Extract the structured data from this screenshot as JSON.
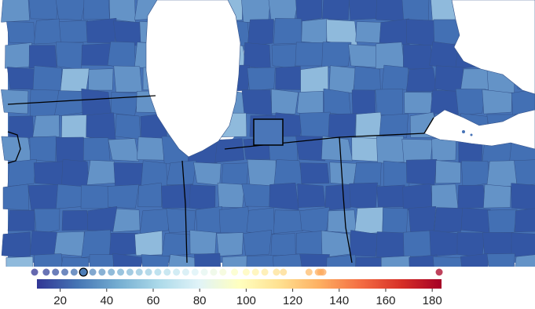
{
  "map": {
    "colors": {
      "water": "#ffffff",
      "county_dark": "#3356a4",
      "county_mid": "#4370b4",
      "county_light": "#6493c7",
      "county_pale": "#8fbadc",
      "county_border": "#35538a",
      "state_border": "#000000"
    },
    "highlighted_county": "selected county outlined in black"
  },
  "legend": {
    "type": "colorbar",
    "colormap": "RdYlBu_r",
    "range": [
      10,
      184
    ],
    "ticks": [
      20,
      40,
      60,
      80,
      100,
      120,
      140,
      160,
      180
    ],
    "tick_labels": [
      "20",
      "40",
      "60",
      "80",
      "100",
      "120",
      "140",
      "160",
      "180"
    ],
    "selected_value": 30,
    "distribution_points": [
      9,
      14,
      18,
      22,
      26,
      30,
      34,
      38,
      42,
      46,
      50,
      54,
      58,
      62,
      66,
      70,
      74,
      78,
      82,
      86,
      90,
      95,
      100,
      104,
      108,
      113,
      116,
      127,
      131,
      132,
      133,
      183
    ],
    "stops": [
      "#313695",
      "#4575b4",
      "#74add1",
      "#abd9e9",
      "#e0f3f8",
      "#ffffbf",
      "#fee090",
      "#fdae61",
      "#f46d43",
      "#d73027",
      "#a50026"
    ]
  }
}
